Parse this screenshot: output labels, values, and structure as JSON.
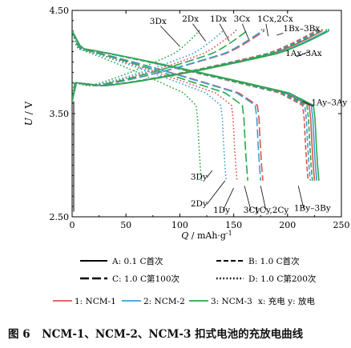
{
  "chart_data": {
    "type": "line",
    "ylabel_var": "U",
    "ylabel_unit": "V",
    "xlabel_var": "Q",
    "xlabel_unit": "mAh·g",
    "xlabel_exp": "-1",
    "xlim": [
      0,
      250
    ],
    "ylim": [
      2.5,
      4.5
    ],
    "xticks": [
      "0",
      "50",
      "100",
      "150",
      "200",
      "250"
    ],
    "yticks": [
      "2.50",
      "3.50",
      "4.50"
    ],
    "grid": false,
    "colors": {
      "NCM-1": "#d9534f",
      "NCM-2": "#3aa0d8",
      "NCM-3": "#2aa84a"
    },
    "legend": {
      "rate_items": [
        {
          "code": "A",
          "text": "A: 0.1 C首次",
          "style": "solid"
        },
        {
          "code": "B",
          "text": "B: 1.0 C首次",
          "style": "dash"
        },
        {
          "code": "C",
          "text": "C: 1.0 C第100次",
          "style": "longdash"
        },
        {
          "code": "D",
          "text": "D: 1.0 C第200次",
          "style": "dot"
        }
      ],
      "sample_items": [
        {
          "name": "1: NCM-1",
          "color": "#d9534f"
        },
        {
          "name": "2: NCM-2",
          "color": "#3aa0d8"
        },
        {
          "name": "3: NCM-3",
          "color": "#2aa84a"
        }
      ],
      "mode_text": "x: 充电  y: 放电"
    },
    "annotations": [
      {
        "text": "3Dx",
        "x": 72,
        "y": 4.37
      },
      {
        "text": "2Dx",
        "x": 102,
        "y": 4.39
      },
      {
        "text": "1Dx",
        "x": 128,
        "y": 4.39
      },
      {
        "text": "3Cx",
        "x": 150,
        "y": 4.39
      },
      {
        "text": "1Cx,2Cx",
        "x": 172,
        "y": 4.39
      },
      {
        "text": "1Bx–3Bx",
        "x": 196,
        "y": 4.3
      },
      {
        "text": "1Ax–3Ax",
        "x": 198,
        "y": 4.06
      },
      {
        "text": "1Ay–3Ay",
        "x": 222,
        "y": 3.58
      },
      {
        "text": "3Dy",
        "x": 110,
        "y": 2.86
      },
      {
        "text": "2Dy",
        "x": 110,
        "y": 2.6
      },
      {
        "text": "1Dy",
        "x": 131,
        "y": 2.54
      },
      {
        "text": "3Cy",
        "x": 159,
        "y": 2.54
      },
      {
        "text": "1Cy,2Cy",
        "x": 169,
        "y": 2.54
      },
      {
        "text": "1By–3By",
        "x": 206,
        "y": 2.56
      }
    ],
    "series": [
      {
        "label": "1A",
        "sample": "NCM-1",
        "rate": "A",
        "cap_charge": 232,
        "cap_discharge": 220
      },
      {
        "label": "2A",
        "sample": "NCM-2",
        "rate": "A",
        "cap_charge": 236,
        "cap_discharge": 222
      },
      {
        "label": "3A",
        "sample": "NCM-3",
        "rate": "A",
        "cap_charge": 238,
        "cap_discharge": 224
      },
      {
        "label": "1B",
        "sample": "NCM-1",
        "rate": "B",
        "cap_charge": 226,
        "cap_discharge": 214
      },
      {
        "label": "2B",
        "sample": "NCM-2",
        "rate": "B",
        "cap_charge": 228,
        "cap_discharge": 216
      },
      {
        "label": "3B",
        "sample": "NCM-3",
        "rate": "B",
        "cap_charge": 230,
        "cap_discharge": 218
      },
      {
        "label": "1C",
        "sample": "NCM-1",
        "rate": "C",
        "cap_charge": 178,
        "cap_discharge": 172
      },
      {
        "label": "2C",
        "sample": "NCM-2",
        "rate": "C",
        "cap_charge": 176,
        "cap_discharge": 170
      },
      {
        "label": "3C",
        "sample": "NCM-3",
        "rate": "C",
        "cap_charge": 162,
        "cap_discharge": 158
      },
      {
        "label": "1D",
        "sample": "NCM-1",
        "rate": "D",
        "cap_charge": 152,
        "cap_discharge": 148
      },
      {
        "label": "2D",
        "sample": "NCM-2",
        "rate": "D",
        "cap_charge": 140,
        "cap_discharge": 138
      },
      {
        "label": "3D",
        "sample": "NCM-3",
        "rate": "D",
        "cap_charge": 118,
        "cap_discharge": 115
      }
    ]
  },
  "caption": {
    "number": "图 6",
    "text": "NCM-1、NCM-2、NCM-3 扣式电池的充放电曲线"
  }
}
